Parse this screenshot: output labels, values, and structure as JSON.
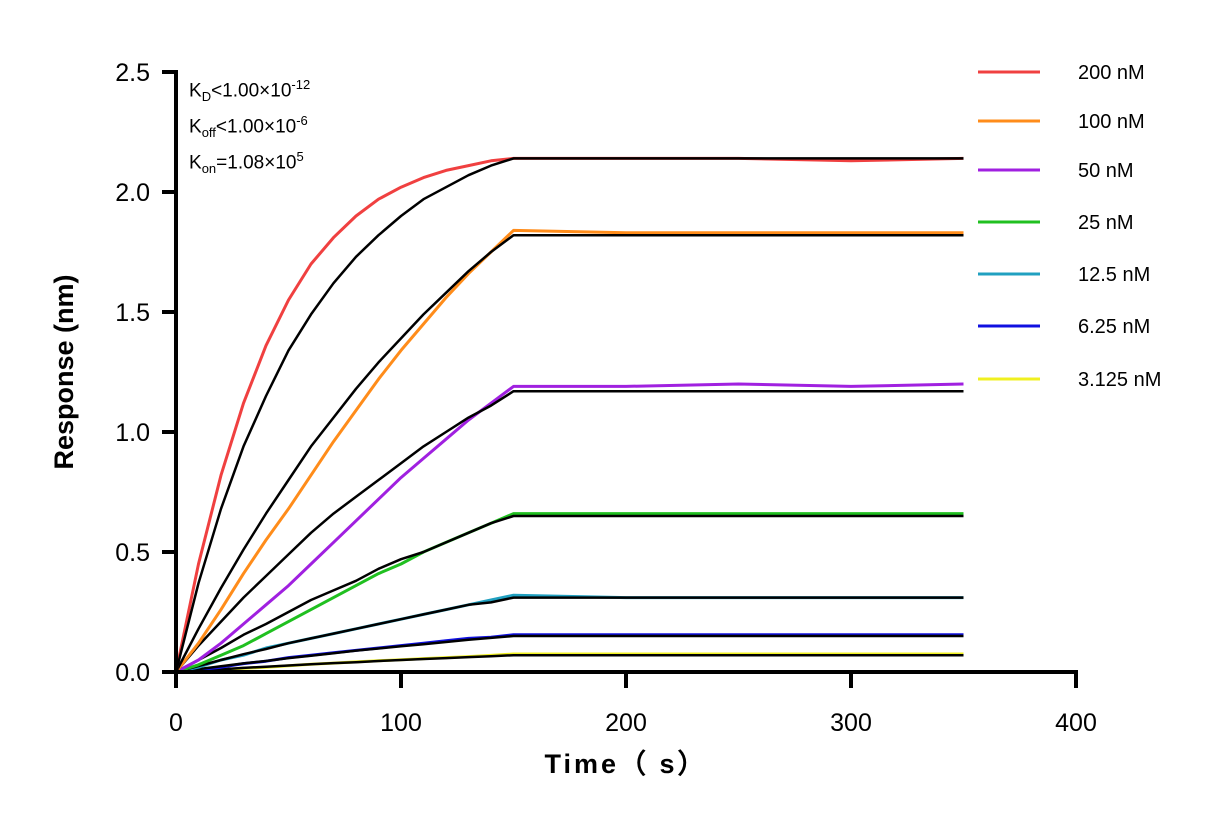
{
  "chart_data": {
    "type": "line",
    "title": "",
    "xlabel": "Time（ s）",
    "ylabel": "Response (nm)",
    "xlim": [
      0,
      400
    ],
    "ylim": [
      0,
      2.5
    ],
    "xticks": [
      "0",
      "100",
      "200",
      "300",
      "400"
    ],
    "yticks": [
      "0.0",
      "0.5",
      "1.0",
      "1.5",
      "2.0",
      "2.5"
    ],
    "grid": false,
    "legend_position": "right",
    "annotations": {
      "kd": {
        "label": "K",
        "sub": "D",
        "rel": "<1.00×10",
        "exp": "-12"
      },
      "koff": {
        "label": "K",
        "sub": "off",
        "rel": "<1.00×10",
        "exp": "-6"
      },
      "kon": {
        "label": "K",
        "sub": "on",
        "rel": "=1.08×10",
        "exp": "5"
      }
    },
    "x": [
      0,
      10,
      20,
      30,
      40,
      50,
      60,
      70,
      80,
      90,
      100,
      110,
      120,
      130,
      140,
      150,
      200,
      250,
      300,
      350
    ],
    "fit_color": "#000000",
    "series": [
      {
        "name": "200 nM",
        "color": "#f04040",
        "values": [
          0,
          0.45,
          0.82,
          1.12,
          1.36,
          1.55,
          1.7,
          1.81,
          1.9,
          1.97,
          2.02,
          2.06,
          2.09,
          2.11,
          2.13,
          2.14,
          2.14,
          2.14,
          2.13,
          2.14
        ],
        "fit": [
          0,
          0.37,
          0.68,
          0.94,
          1.15,
          1.34,
          1.49,
          1.62,
          1.73,
          1.82,
          1.9,
          1.97,
          2.02,
          2.07,
          2.11,
          2.14,
          2.14,
          2.14,
          2.14,
          2.14
        ]
      },
      {
        "name": "100 nM",
        "color": "#ff8c1a",
        "values": [
          0,
          0.12,
          0.26,
          0.41,
          0.55,
          0.68,
          0.82,
          0.96,
          1.09,
          1.22,
          1.34,
          1.45,
          1.56,
          1.66,
          1.75,
          1.84,
          1.83,
          1.83,
          1.83,
          1.83
        ],
        "fit": [
          0,
          0.18,
          0.35,
          0.51,
          0.66,
          0.8,
          0.94,
          1.06,
          1.18,
          1.29,
          1.39,
          1.49,
          1.58,
          1.67,
          1.75,
          1.82,
          1.82,
          1.82,
          1.82,
          1.82
        ]
      },
      {
        "name": "50 nM",
        "color": "#a020e0",
        "values": [
          0,
          0.05,
          0.12,
          0.2,
          0.28,
          0.36,
          0.45,
          0.54,
          0.63,
          0.72,
          0.81,
          0.89,
          0.97,
          1.05,
          1.12,
          1.19,
          1.19,
          1.2,
          1.19,
          1.2
        ],
        "fit": [
          0,
          0.11,
          0.21,
          0.31,
          0.4,
          0.49,
          0.58,
          0.66,
          0.73,
          0.8,
          0.87,
          0.94,
          1.0,
          1.06,
          1.11,
          1.17,
          1.17,
          1.17,
          1.17,
          1.17
        ]
      },
      {
        "name": "25 nM",
        "color": "#20c020",
        "values": [
          0,
          0.03,
          0.07,
          0.11,
          0.16,
          0.21,
          0.26,
          0.31,
          0.36,
          0.41,
          0.45,
          0.5,
          0.54,
          0.58,
          0.62,
          0.66,
          0.66,
          0.66,
          0.66,
          0.66
        ],
        "fit": [
          0,
          0.05,
          0.1,
          0.155,
          0.2,
          0.25,
          0.3,
          0.34,
          0.38,
          0.43,
          0.47,
          0.5,
          0.54,
          0.58,
          0.62,
          0.65,
          0.65,
          0.65,
          0.65,
          0.65
        ]
      },
      {
        "name": "12.5 nM",
        "color": "#20a0c0",
        "values": [
          0,
          0.02,
          0.05,
          0.07,
          0.1,
          0.12,
          0.14,
          0.16,
          0.18,
          0.2,
          0.22,
          0.24,
          0.26,
          0.28,
          0.3,
          0.32,
          0.31,
          0.31,
          0.31,
          0.31
        ],
        "fit": [
          0,
          0.025,
          0.05,
          0.074,
          0.096,
          0.12,
          0.14,
          0.16,
          0.18,
          0.2,
          0.22,
          0.24,
          0.26,
          0.28,
          0.29,
          0.31,
          0.31,
          0.31,
          0.31,
          0.31
        ]
      },
      {
        "name": "6.25 nM",
        "color": "#1010e0",
        "values": [
          0,
          0.01,
          0.02,
          0.035,
          0.045,
          0.06,
          0.07,
          0.08,
          0.09,
          0.1,
          0.11,
          0.12,
          0.13,
          0.14,
          0.145,
          0.155,
          0.155,
          0.155,
          0.155,
          0.155
        ],
        "fit": [
          0,
          0.012,
          0.024,
          0.036,
          0.046,
          0.058,
          0.068,
          0.078,
          0.089,
          0.098,
          0.107,
          0.116,
          0.125,
          0.134,
          0.142,
          0.15,
          0.15,
          0.15,
          0.15,
          0.15
        ]
      },
      {
        "name": "3.125 nM",
        "color": "#f0f020",
        "values": [
          0,
          0.004,
          0.01,
          0.016,
          0.02,
          0.026,
          0.032,
          0.037,
          0.042,
          0.047,
          0.051,
          0.056,
          0.06,
          0.064,
          0.069,
          0.075,
          0.075,
          0.075,
          0.075,
          0.075
        ],
        "fit": [
          0,
          0.006,
          0.011,
          0.017,
          0.022,
          0.027,
          0.032,
          0.037,
          0.041,
          0.046,
          0.05,
          0.054,
          0.058,
          0.062,
          0.066,
          0.07,
          0.07,
          0.07,
          0.07,
          0.07
        ]
      }
    ]
  }
}
